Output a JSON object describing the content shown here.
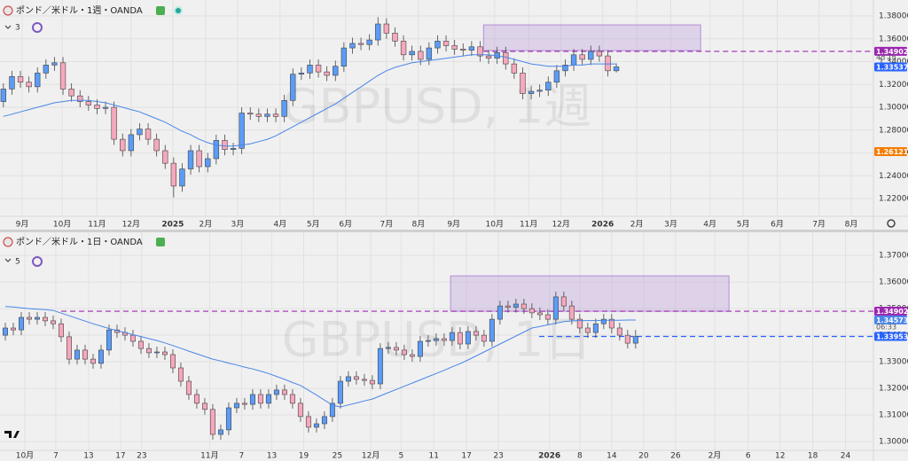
{
  "chart_data": [
    {
      "type": "candlestick",
      "title": "ポンド／米ドル・1週・OANDA",
      "interval": "3",
      "watermark": "GBPUSD, 1週",
      "xlim": [
        -0.4,
        102.2
      ],
      "xticks": [
        {
          "value": 2.2,
          "label": "9月"
        },
        {
          "value": 6.9,
          "label": "10月"
        },
        {
          "value": 11.0,
          "label": "11月"
        },
        {
          "value": 15.0,
          "label": "12月"
        },
        {
          "value": 19.9,
          "label": "2025"
        },
        {
          "value": 23.75,
          "label": "2月"
        },
        {
          "value": 27.5,
          "label": "3月"
        },
        {
          "value": 32.5,
          "label": "4月"
        },
        {
          "value": 36.4,
          "label": "5月"
        },
        {
          "value": 40.2,
          "label": "6月"
        },
        {
          "value": 45.0,
          "label": "7月"
        },
        {
          "value": 48.75,
          "label": "8月"
        },
        {
          "value": 52.9,
          "label": "9月"
        },
        {
          "value": 57.7,
          "label": "10月"
        },
        {
          "value": 61.7,
          "label": "11月"
        },
        {
          "value": 65.5,
          "label": "12月"
        },
        {
          "value": 70.4,
          "label": "2026"
        },
        {
          "value": 74.4,
          "label": "2月"
        },
        {
          "value": 78.4,
          "label": "3月"
        },
        {
          "value": 83.0,
          "label": "4月"
        },
        {
          "value": 86.9,
          "label": "5月"
        },
        {
          "value": 90.9,
          "label": "6月"
        },
        {
          "value": 95.8,
          "label": "7月"
        },
        {
          "value": 99.6,
          "label": "8月"
        }
      ],
      "ylim": [
        1.2045,
        1.394
      ],
      "yticks": [
        {
          "value": 1.22,
          "label": "1.22000"
        },
        {
          "value": 1.24,
          "label": "1.24000"
        },
        {
          "value": 1.26,
          "label": "1.26000"
        },
        {
          "value": 1.28,
          "label": "1.28000"
        },
        {
          "value": 1.3,
          "label": "1.30000"
        },
        {
          "value": 1.32,
          "label": "1.32000"
        },
        {
          "value": 1.34,
          "label": "1.34000"
        },
        {
          "value": 1.36,
          "label": "1.36000"
        },
        {
          "value": 1.38,
          "label": "1.38000"
        }
      ],
      "grid": true,
      "up_color": "#5b9cf6",
      "down_color": "#f6a8bd",
      "open": [
        1.305,
        1.316,
        1.327,
        1.322,
        1.318,
        1.33,
        1.337,
        1.339,
        1.316,
        1.31,
        1.305,
        1.302,
        1.299,
        1.3,
        1.272,
        1.262,
        1.276,
        1.281,
        1.272,
        1.262,
        1.251,
        1.231,
        1.246,
        1.262,
        1.248,
        1.255,
        1.271,
        1.263,
        1.264,
        1.295,
        1.294,
        1.292,
        1.294,
        1.292,
        1.306,
        1.329,
        1.33,
        1.337,
        1.331,
        1.328,
        1.336,
        1.352,
        1.356,
        1.355,
        1.359,
        1.373,
        1.365,
        1.358,
        1.346,
        1.349,
        1.342,
        1.352,
        1.358,
        1.354,
        1.351,
        1.35,
        1.353,
        1.345,
        1.343,
        1.348,
        1.338,
        1.33,
        1.312,
        1.314,
        1.315,
        1.322,
        1.332,
        1.337,
        1.346,
        1.342,
        1.349,
        1.345,
        1.332
      ],
      "high": [
        1.321,
        1.332,
        1.332,
        1.327,
        1.335,
        1.342,
        1.344,
        1.344,
        1.321,
        1.315,
        1.31,
        1.307,
        1.305,
        1.305,
        1.277,
        1.281,
        1.286,
        1.286,
        1.277,
        1.267,
        1.256,
        1.251,
        1.267,
        1.267,
        1.26,
        1.276,
        1.276,
        1.269,
        1.3,
        1.3,
        1.299,
        1.299,
        1.299,
        1.311,
        1.334,
        1.335,
        1.342,
        1.342,
        1.336,
        1.341,
        1.357,
        1.361,
        1.361,
        1.364,
        1.379,
        1.378,
        1.37,
        1.363,
        1.354,
        1.354,
        1.357,
        1.363,
        1.363,
        1.359,
        1.356,
        1.358,
        1.358,
        1.35,
        1.353,
        1.353,
        1.343,
        1.335,
        1.319,
        1.32,
        1.327,
        1.337,
        1.342,
        1.351,
        1.351,
        1.354,
        1.354,
        1.35,
        1.3385
      ],
      "low": [
        1.3,
        1.311,
        1.317,
        1.313,
        1.313,
        1.325,
        1.332,
        1.311,
        1.305,
        1.3,
        1.297,
        1.294,
        1.294,
        1.267,
        1.257,
        1.257,
        1.271,
        1.267,
        1.257,
        1.246,
        1.221,
        1.226,
        1.241,
        1.243,
        1.243,
        1.25,
        1.258,
        1.258,
        1.259,
        1.289,
        1.287,
        1.287,
        1.287,
        1.287,
        1.301,
        1.324,
        1.325,
        1.326,
        1.323,
        1.323,
        1.331,
        1.347,
        1.35,
        1.35,
        1.354,
        1.36,
        1.353,
        1.341,
        1.341,
        1.337,
        1.337,
        1.347,
        1.349,
        1.346,
        1.345,
        1.345,
        1.34,
        1.338,
        1.338,
        1.333,
        1.325,
        1.307,
        1.307,
        1.309,
        1.31,
        1.317,
        1.327,
        1.332,
        1.337,
        1.337,
        1.34,
        1.327,
        1.3305
      ],
      "close": [
        1.316,
        1.327,
        1.322,
        1.318,
        1.33,
        1.337,
        1.339,
        1.316,
        1.31,
        1.305,
        1.302,
        1.299,
        1.3,
        1.272,
        1.262,
        1.276,
        1.281,
        1.272,
        1.262,
        1.251,
        1.231,
        1.246,
        1.262,
        1.248,
        1.255,
        1.271,
        1.263,
        1.264,
        1.295,
        1.294,
        1.292,
        1.294,
        1.292,
        1.306,
        1.329,
        1.33,
        1.337,
        1.331,
        1.328,
        1.336,
        1.352,
        1.356,
        1.355,
        1.359,
        1.373,
        1.365,
        1.358,
        1.346,
        1.349,
        1.342,
        1.352,
        1.358,
        1.354,
        1.351,
        1.35,
        1.353,
        1.345,
        1.343,
        1.348,
        1.338,
        1.33,
        1.312,
        1.314,
        1.315,
        1.322,
        1.332,
        1.337,
        1.346,
        1.342,
        1.349,
        1.345,
        1.332,
        1.3354
      ],
      "ma": {
        "color": "#4a86e8",
        "values": [
          1.292,
          1.294,
          1.296,
          1.298,
          1.3,
          1.302,
          1.304,
          1.305,
          1.306,
          1.306,
          1.306,
          1.305,
          1.304,
          1.302,
          1.3,
          1.298,
          1.296,
          1.293,
          1.29,
          1.287,
          1.283,
          1.279,
          1.276,
          1.272,
          1.269,
          1.267,
          1.266,
          1.266,
          1.267,
          1.268,
          1.27,
          1.272,
          1.275,
          1.279,
          1.283,
          1.287,
          1.291,
          1.295,
          1.299,
          1.303,
          1.308,
          1.313,
          1.318,
          1.323,
          1.328,
          1.332,
          1.335,
          1.337,
          1.339,
          1.34,
          1.341,
          1.342,
          1.343,
          1.344,
          1.345,
          1.346,
          1.346,
          1.346,
          1.345,
          1.344,
          1.342,
          1.34,
          1.338,
          1.337,
          1.336,
          1.336,
          1.336,
          1.337,
          1.337,
          1.338,
          1.338,
          1.338,
          1.338
        ]
      },
      "zone": {
        "start": 56.4,
        "end": 81.9,
        "low": 1.3497,
        "high": 1.3722,
        "color": "#b48ed6"
      },
      "price_lines": [
        {
          "value": 1.34902,
          "color": "#9c27b0",
          "dashed_from": 56.4
        },
        {
          "value": 1.33537,
          "color": "#2962ff",
          "countdown": "4d 1h"
        },
        {
          "value": 1.26121,
          "color": "#f57c00"
        }
      ]
    },
    {
      "type": "candlestick",
      "title": "ポンド／米ドル・1日・OANDA",
      "interval": "5",
      "watermark": "GBPUSD, 1日",
      "xlim": [
        -0.667,
        108.8
      ],
      "xticks": [
        {
          "value": 2.44,
          "label": "10月"
        },
        {
          "value": 6.33,
          "label": "7"
        },
        {
          "value": 10.44,
          "label": "13"
        },
        {
          "value": 14.44,
          "label": "17"
        },
        {
          "value": 17.1,
          "label": "23"
        },
        {
          "value": 25.6,
          "label": "11月"
        },
        {
          "value": 29.6,
          "label": "7"
        },
        {
          "value": 33.4,
          "label": "13"
        },
        {
          "value": 37.4,
          "label": "19"
        },
        {
          "value": 41.6,
          "label": "25"
        },
        {
          "value": 45.8,
          "label": "12月"
        },
        {
          "value": 49.6,
          "label": "5"
        },
        {
          "value": 53.7,
          "label": "11"
        },
        {
          "value": 57.8,
          "label": "17"
        },
        {
          "value": 61.8,
          "label": "23"
        },
        {
          "value": 68.2,
          "label": "2026"
        },
        {
          "value": 72.0,
          "label": "8"
        },
        {
          "value": 76.0,
          "label": "14"
        },
        {
          "value": 80.0,
          "label": "20"
        },
        {
          "value": 84.0,
          "label": "26"
        },
        {
          "value": 88.9,
          "label": "2月"
        },
        {
          "value": 93.1,
          "label": "6"
        },
        {
          "value": 97.1,
          "label": "12"
        },
        {
          "value": 101.2,
          "label": "18"
        },
        {
          "value": 105.3,
          "label": "24"
        }
      ],
      "ylim": [
        1.2967,
        1.3787
      ],
      "yticks": [
        {
          "value": 1.3,
          "label": "1.30000"
        },
        {
          "value": 1.31,
          "label": "1.31000"
        },
        {
          "value": 1.32,
          "label": "1.32000"
        },
        {
          "value": 1.33,
          "label": "1.33000"
        },
        {
          "value": 1.34,
          "label": "1.34000"
        },
        {
          "value": 1.35,
          "label": "1.35000"
        },
        {
          "value": 1.36,
          "label": "1.36000"
        },
        {
          "value": 1.37,
          "label": "1.37000"
        }
      ],
      "grid": true,
      "up_color": "#5b9cf6",
      "down_color": "#f6a8bd",
      "open": [
        1.34,
        1.3427,
        1.342,
        1.3467,
        1.346,
        1.3467,
        1.3454,
        1.3443,
        1.3394,
        1.331,
        1.3344,
        1.331,
        1.3294,
        1.3344,
        1.342,
        1.341,
        1.34,
        1.3377,
        1.335,
        1.3334,
        1.3337,
        1.3327,
        1.3277,
        1.3227,
        1.3177,
        1.3144,
        1.3121,
        1.3027,
        1.3044,
        1.3127,
        1.3144,
        1.314,
        1.3177,
        1.3144,
        1.3177,
        1.3194,
        1.3177,
        1.3144,
        1.3094,
        1.3054,
        1.3067,
        1.3094,
        1.3144,
        1.3227,
        1.3244,
        1.3234,
        1.323,
        1.3217,
        1.335,
        1.3354,
        1.3344,
        1.3327,
        1.332,
        1.3377,
        1.338,
        1.3387,
        1.338,
        1.341,
        1.3367,
        1.3414,
        1.34,
        1.3377,
        1.346,
        1.351,
        1.3505,
        1.3517,
        1.35,
        1.3484,
        1.3477,
        1.346,
        1.3544,
        1.351,
        1.346,
        1.3427,
        1.341,
        1.3443,
        1.346,
        1.3427,
        1.34,
        1.337
      ],
      "high": [
        1.3447,
        1.3447,
        1.3487,
        1.3487,
        1.3487,
        1.3487,
        1.3474,
        1.3463,
        1.3414,
        1.3364,
        1.3364,
        1.333,
        1.3364,
        1.344,
        1.344,
        1.343,
        1.342,
        1.3397,
        1.337,
        1.3357,
        1.3357,
        1.3347,
        1.3297,
        1.3247,
        1.3197,
        1.3164,
        1.3141,
        1.3064,
        1.3147,
        1.3164,
        1.3164,
        1.3197,
        1.3197,
        1.3197,
        1.3214,
        1.3214,
        1.3197,
        1.3164,
        1.3114,
        1.3087,
        1.3114,
        1.3164,
        1.3247,
        1.3264,
        1.3264,
        1.3254,
        1.325,
        1.337,
        1.3374,
        1.3374,
        1.3364,
        1.3347,
        1.3397,
        1.34,
        1.3407,
        1.3407,
        1.343,
        1.343,
        1.3434,
        1.3434,
        1.342,
        1.348,
        1.353,
        1.353,
        1.3537,
        1.3537,
        1.352,
        1.3504,
        1.3497,
        1.3564,
        1.3564,
        1.353,
        1.348,
        1.3447,
        1.3463,
        1.348,
        1.348,
        1.3447,
        1.342,
        1.342
      ],
      "low": [
        1.338,
        1.34,
        1.34,
        1.344,
        1.344,
        1.3434,
        1.3423,
        1.3374,
        1.329,
        1.329,
        1.329,
        1.3274,
        1.3274,
        1.3324,
        1.339,
        1.338,
        1.3357,
        1.333,
        1.3314,
        1.3314,
        1.3307,
        1.3257,
        1.3207,
        1.3157,
        1.3124,
        1.3101,
        1.3007,
        1.3007,
        1.3024,
        1.3107,
        1.312,
        1.312,
        1.3124,
        1.3124,
        1.3157,
        1.3157,
        1.3124,
        1.3074,
        1.3034,
        1.3034,
        1.3047,
        1.3074,
        1.3124,
        1.3207,
        1.3214,
        1.321,
        1.3197,
        1.3197,
        1.333,
        1.3324,
        1.3307,
        1.33,
        1.33,
        1.3357,
        1.336,
        1.336,
        1.336,
        1.3347,
        1.3347,
        1.338,
        1.3357,
        1.3357,
        1.344,
        1.3485,
        1.3485,
        1.348,
        1.3464,
        1.3457,
        1.344,
        1.344,
        1.349,
        1.344,
        1.3407,
        1.339,
        1.339,
        1.3423,
        1.3407,
        1.338,
        1.335,
        1.335
      ],
      "close": [
        1.3427,
        1.342,
        1.3467,
        1.346,
        1.3467,
        1.3454,
        1.3443,
        1.3394,
        1.331,
        1.3344,
        1.331,
        1.3294,
        1.3344,
        1.342,
        1.341,
        1.34,
        1.3377,
        1.335,
        1.3334,
        1.3337,
        1.3327,
        1.3277,
        1.3227,
        1.3177,
        1.3144,
        1.3121,
        1.3027,
        1.3044,
        1.3127,
        1.3144,
        1.314,
        1.3177,
        1.3144,
        1.3177,
        1.3194,
        1.3177,
        1.3144,
        1.3094,
        1.3054,
        1.3067,
        1.3094,
        1.3144,
        1.3227,
        1.3244,
        1.3234,
        1.323,
        1.3217,
        1.335,
        1.3354,
        1.3344,
        1.3327,
        1.332,
        1.3377,
        1.338,
        1.3387,
        1.338,
        1.341,
        1.3367,
        1.3414,
        1.34,
        1.3377,
        1.346,
        1.351,
        1.3505,
        1.3517,
        1.35,
        1.3484,
        1.3477,
        1.346,
        1.3544,
        1.351,
        1.346,
        1.3427,
        1.341,
        1.3443,
        1.346,
        1.3427,
        1.34,
        1.337,
        1.3395
      ],
      "ma": {
        "color": "#4a86e8",
        "values": [
          1.3508,
          1.3506,
          1.3503,
          1.35,
          1.3498,
          1.3496,
          1.3493,
          1.3483,
          1.3473,
          1.3463,
          1.3453,
          1.3443,
          1.3434,
          1.3425,
          1.3417,
          1.341,
          1.3402,
          1.3395,
          1.3387,
          1.338,
          1.3371,
          1.3361,
          1.3351,
          1.334,
          1.333,
          1.332,
          1.331,
          1.3303,
          1.3295,
          1.3288,
          1.328,
          1.3273,
          1.3265,
          1.3256,
          1.3245,
          1.3234,
          1.3222,
          1.3211,
          1.3193,
          1.3175,
          1.3156,
          1.3137,
          1.313,
          1.3138,
          1.3145,
          1.3153,
          1.316,
          1.3172,
          1.3184,
          1.3196,
          1.3208,
          1.322,
          1.3232,
          1.3244,
          1.3256,
          1.3268,
          1.3281,
          1.3293,
          1.3307,
          1.3322,
          1.3337,
          1.3352,
          1.3367,
          1.3382,
          1.3397,
          1.3412,
          1.3427,
          1.3433,
          1.3439,
          1.3445,
          1.3451,
          1.3454,
          1.3455,
          1.3455,
          1.3455,
          1.3456,
          1.3456,
          1.3456,
          1.3457,
          1.3457
        ]
      },
      "zone": {
        "start": 55.8,
        "end": 90.7,
        "low": 1.349,
        "high": 1.3623,
        "color": "#b48ed6"
      },
      "price_lines": [
        {
          "value": 1.34902,
          "color": "#9c27b0",
          "dashed_from": 7
        },
        {
          "value": 1.34573,
          "color": "#4a86e8"
        },
        {
          "value": 1.33953,
          "color": "#2962ff",
          "countdown": "06:33",
          "dashed_from": 66.9
        }
      ]
    }
  ]
}
